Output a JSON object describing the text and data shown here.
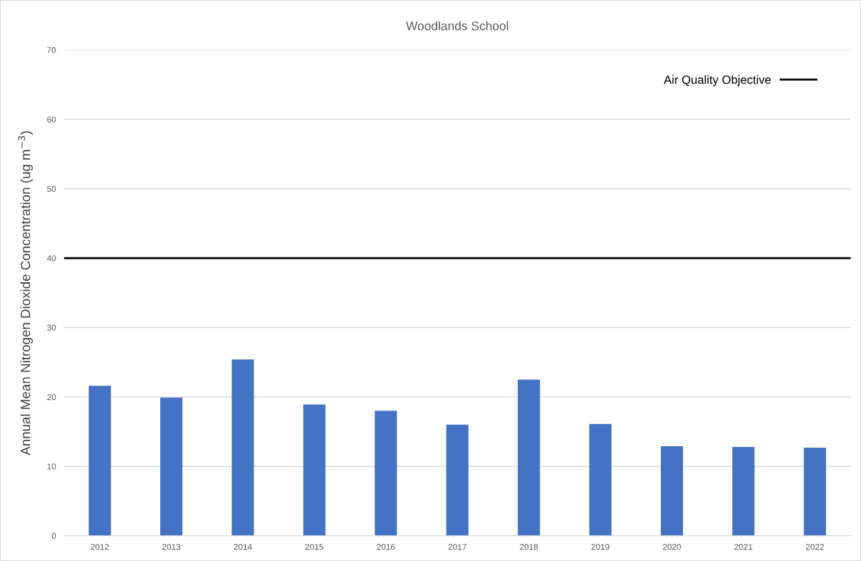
{
  "chart_data": {
    "type": "bar",
    "title": "Woodlands School",
    "ylabel": "Annual Mean Nitrogen Dioxide Concentration (ug m$^{−3}$)",
    "categories": [
      "2012",
      "2013",
      "2014",
      "2015",
      "2016",
      "2017",
      "2018",
      "2019",
      "2020",
      "2021",
      "2022"
    ],
    "values": [
      21.6,
      19.9,
      25.4,
      18.9,
      18.0,
      16.0,
      22.5,
      16.1,
      12.9,
      12.8,
      12.7
    ],
    "color": "#4472c4",
    "ylim": [
      0,
      70
    ],
    "yticks": [
      0,
      10,
      20,
      30,
      40,
      50,
      60,
      70
    ],
    "grid": "y",
    "legend": "top right",
    "ref_lines": [
      {
        "axis": "y",
        "value": 40,
        "label": "Air Quality Objective",
        "color": "#000000"
      }
    ]
  }
}
